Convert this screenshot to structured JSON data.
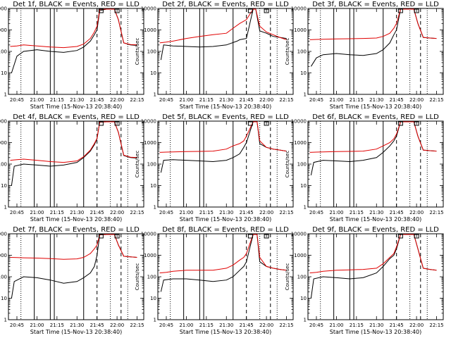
{
  "figure": {
    "xlabel": "Start Time (15-Nov-13 20:38:40)",
    "ylabel": "Counts/sec"
  },
  "chart_data": [
    {
      "type": "line",
      "title": "Det 1f, BLACK = Events, RED = LLD",
      "xlim": [
        "20:38:40",
        "22:20"
      ],
      "ylim": [
        1,
        10000
      ],
      "yscale": "log",
      "xticks": [
        "20:45",
        "21:00",
        "21:15",
        "21:30",
        "21:45",
        "22:00",
        "22:15"
      ],
      "yticks": [
        "1",
        "10",
        "100",
        "1000",
        "10000"
      ],
      "series": [
        {
          "name": "BLACK = Events",
          "x": [
            "20:41",
            "20:45",
            "20:50",
            "21:00",
            "21:10",
            "21:20",
            "21:30",
            "21:35",
            "21:40",
            "21:43",
            "21:45",
            "21:47",
            "21:52",
            "21:55",
            "21:58",
            "22:01",
            "22:05",
            "22:10",
            "22:15"
          ],
          "y": [
            10,
            60,
            100,
            120,
            100,
            90,
            110,
            160,
            300,
            600,
            1000,
            8000,
            11000,
            11000,
            11000,
            3000,
            250,
            200,
            190
          ]
        },
        {
          "name": "RED = LLD",
          "x": [
            "20:40",
            "20:45",
            "20:50",
            "21:00",
            "21:10",
            "21:20",
            "21:30",
            "21:35",
            "21:40",
            "21:43",
            "21:45",
            "21:47",
            "21:52",
            "21:55",
            "21:58",
            "22:01",
            "22:05",
            "22:10",
            "22:15"
          ],
          "y": [
            170,
            180,
            200,
            180,
            160,
            150,
            170,
            220,
            400,
            800,
            1500,
            9000,
            11000,
            11000,
            11000,
            3000,
            250,
            210,
            200
          ]
        }
      ]
    },
    {
      "type": "line",
      "title": "Det 2f, BLACK = Events, RED = LLD",
      "xlim": [
        "20:38:40",
        "22:20"
      ],
      "ylim": [
        1,
        10000
      ],
      "yscale": "log",
      "xticks": [
        "20:45",
        "21:00",
        "21:15",
        "21:30",
        "21:45",
        "22:00",
        "22:15"
      ],
      "yticks": [
        "1",
        "10",
        "100",
        "1000",
        "10000"
      ],
      "series": [
        {
          "name": "BLACK = Events",
          "x": [
            "20:41",
            "20:43",
            "20:50",
            "21:00",
            "21:10",
            "21:20",
            "21:30",
            "21:38",
            "21:40",
            "21:45",
            "21:50",
            "21:52",
            "21:55",
            "22:00",
            "22:05",
            "22:10",
            "22:15"
          ],
          "y": [
            40,
            200,
            180,
            170,
            160,
            170,
            200,
            300,
            350,
            400,
            11000,
            11000,
            900,
            700,
            500,
            450,
            400
          ]
        },
        {
          "name": "RED = LLD",
          "x": [
            "20:40",
            "20:45",
            "20:50",
            "21:00",
            "21:10",
            "21:20",
            "21:30",
            "21:35",
            "21:40",
            "21:45",
            "21:50",
            "21:52",
            "21:55",
            "22:00",
            "22:05",
            "22:10",
            "22:15"
          ],
          "y": [
            250,
            270,
            300,
            400,
            500,
            600,
            700,
            1200,
            2000,
            3000,
            11000,
            11000,
            1500,
            800,
            600,
            450,
            350
          ]
        }
      ]
    },
    {
      "type": "line",
      "title": "Det 3f, BLACK = Events, RED = LLD",
      "xlim": [
        "20:38:40",
        "22:20"
      ],
      "ylim": [
        1,
        10000
      ],
      "yscale": "log",
      "xticks": [
        "20:45",
        "21:00",
        "21:15",
        "21:30",
        "21:45",
        "22:00",
        "22:15"
      ],
      "yticks": [
        "1",
        "10",
        "100",
        "1000",
        "10000"
      ],
      "series": [
        {
          "name": "BLACK = Events",
          "x": [
            "20:41",
            "20:45",
            "20:50",
            "21:00",
            "21:10",
            "21:20",
            "21:30",
            "21:35",
            "21:40",
            "21:43",
            "21:45",
            "21:48",
            "21:55",
            "21:58",
            "22:01",
            "22:05",
            "22:10",
            "22:15"
          ],
          "y": [
            20,
            50,
            70,
            80,
            70,
            65,
            80,
            120,
            250,
            600,
            1000,
            11000,
            11000,
            11000,
            2000,
            450,
            420,
            400
          ]
        },
        {
          "name": "RED = LLD",
          "x": [
            "20:40",
            "20:45",
            "20:50",
            "21:00",
            "21:10",
            "21:20",
            "21:30",
            "21:35",
            "21:40",
            "21:43",
            "21:45",
            "21:48",
            "21:55",
            "21:58",
            "22:01",
            "22:05",
            "22:10",
            "22:15"
          ],
          "y": [
            350,
            360,
            370,
            380,
            390,
            400,
            420,
            500,
            700,
            1200,
            2000,
            11000,
            11000,
            11000,
            2000,
            450,
            420,
            400
          ]
        }
      ]
    },
    {
      "type": "line",
      "title": "Det 4f, BLACK = Events, RED = LLD",
      "xlim": [
        "20:38:40",
        "22:20"
      ],
      "ylim": [
        1,
        10000
      ],
      "yscale": "log",
      "xticks": [
        "20:45",
        "21:00",
        "21:15",
        "21:30",
        "21:45",
        "22:00",
        "22:15"
      ],
      "yticks": [
        "1",
        "10",
        "100",
        "1000",
        "10000"
      ],
      "series": [
        {
          "name": "BLACK = Events",
          "x": [
            "20:41",
            "20:43",
            "20:50",
            "21:00",
            "21:10",
            "21:20",
            "21:30",
            "21:35",
            "21:40",
            "21:43",
            "21:45",
            "21:47",
            "21:52",
            "21:55",
            "21:58",
            "22:01",
            "22:05",
            "22:10",
            "22:15"
          ],
          "y": [
            10,
            80,
            100,
            90,
            80,
            90,
            120,
            200,
            400,
            800,
            1500,
            9000,
            11000,
            11000,
            11000,
            3000,
            250,
            200,
            190
          ]
        },
        {
          "name": "RED = LLD",
          "x": [
            "20:40",
            "20:45",
            "20:50",
            "21:00",
            "21:10",
            "21:20",
            "21:30",
            "21:35",
            "21:40",
            "21:43",
            "21:45",
            "21:47",
            "21:52",
            "21:55",
            "21:58",
            "22:01",
            "22:05",
            "22:10",
            "22:15"
          ],
          "y": [
            150,
            160,
            170,
            150,
            130,
            120,
            140,
            220,
            450,
            900,
            1600,
            9000,
            11000,
            11000,
            11000,
            3000,
            260,
            210,
            200
          ]
        }
      ]
    },
    {
      "type": "line",
      "title": "Det 5f, BLACK = Events, RED = LLD",
      "xlim": [
        "20:38:40",
        "22:20"
      ],
      "ylim": [
        1,
        10000
      ],
      "yscale": "log",
      "xticks": [
        "20:45",
        "21:00",
        "21:15",
        "21:30",
        "21:45",
        "22:00",
        "22:15"
      ],
      "yticks": [
        "1",
        "10",
        "100",
        "1000",
        "10000"
      ],
      "series": [
        {
          "name": "BLACK = Events",
          "x": [
            "20:41",
            "20:43",
            "20:50",
            "21:00",
            "21:10",
            "21:20",
            "21:30",
            "21:35",
            "21:40",
            "21:43",
            "21:45",
            "21:50",
            "21:53",
            "21:55",
            "22:00",
            "22:05",
            "22:10",
            "22:15"
          ],
          "y": [
            40,
            150,
            160,
            150,
            140,
            130,
            150,
            200,
            300,
            600,
            1000,
            11000,
            11000,
            900,
            600,
            500,
            450,
            400
          ]
        },
        {
          "name": "RED = LLD",
          "x": [
            "20:40",
            "20:45",
            "20:50",
            "21:00",
            "21:10",
            "21:20",
            "21:30",
            "21:35",
            "21:40",
            "21:43",
            "21:45",
            "21:50",
            "21:53",
            "21:55",
            "22:00",
            "22:05",
            "22:10",
            "22:15"
          ],
          "y": [
            350,
            360,
            370,
            380,
            390,
            400,
            500,
            700,
            900,
            1200,
            2000,
            11000,
            11000,
            1200,
            600,
            500,
            450,
            400
          ]
        }
      ]
    },
    {
      "type": "line",
      "title": "Det 6f, BLACK = Events, RED = LLD",
      "xlim": [
        "20:38:40",
        "22:20"
      ],
      "ylim": [
        1,
        10000
      ],
      "yscale": "log",
      "xticks": [
        "20:45",
        "21:00",
        "21:15",
        "21:30",
        "21:45",
        "22:00",
        "22:15"
      ],
      "yticks": [
        "1",
        "10",
        "100",
        "1000",
        "10000"
      ],
      "series": [
        {
          "name": "BLACK = Events",
          "x": [
            "20:41",
            "20:43",
            "20:50",
            "21:00",
            "21:10",
            "21:20",
            "21:30",
            "21:35",
            "21:40",
            "21:43",
            "21:45",
            "21:48",
            "21:55",
            "21:58",
            "22:01",
            "22:05",
            "22:10",
            "22:15"
          ],
          "y": [
            30,
            120,
            150,
            140,
            130,
            150,
            200,
            350,
            700,
            1200,
            2000,
            11000,
            11000,
            11000,
            2000,
            450,
            420,
            400
          ]
        },
        {
          "name": "RED = LLD",
          "x": [
            "20:40",
            "20:45",
            "20:50",
            "21:00",
            "21:10",
            "21:20",
            "21:30",
            "21:35",
            "21:40",
            "21:43",
            "21:45",
            "21:48",
            "21:55",
            "21:58",
            "22:01",
            "22:05",
            "22:10",
            "22:15"
          ],
          "y": [
            350,
            360,
            370,
            380,
            390,
            400,
            500,
            700,
            1000,
            1500,
            2500,
            11000,
            11000,
            11000,
            2000,
            450,
            420,
            400
          ]
        }
      ]
    },
    {
      "type": "line",
      "title": "Det 7f, BLACK = Events, RED = LLD",
      "xlim": [
        "20:38:40",
        "22:20"
      ],
      "ylim": [
        1,
        10000
      ],
      "yscale": "log",
      "xticks": [
        "20:45",
        "21:00",
        "21:15",
        "21:30",
        "21:45",
        "22:00",
        "22:15"
      ],
      "yticks": [
        "1",
        "10",
        "100",
        "1000",
        "10000"
      ],
      "series": [
        {
          "name": "BLACK = Events",
          "x": [
            "20:41",
            "20:43",
            "20:50",
            "21:00",
            "21:10",
            "21:20",
            "21:30",
            "21:35",
            "21:40",
            "21:43",
            "21:45",
            "21:47",
            "21:52",
            "21:55",
            "21:58",
            "22:01",
            "22:05",
            "22:10",
            "22:15"
          ],
          "y": [
            10,
            60,
            100,
            90,
            70,
            50,
            60,
            90,
            150,
            300,
            1000,
            9000,
            11000,
            11000,
            11000,
            3000,
            900,
            850,
            800
          ]
        },
        {
          "name": "RED = LLD",
          "x": [
            "20:40",
            "20:45",
            "20:50",
            "21:00",
            "21:10",
            "21:20",
            "21:30",
            "21:35",
            "21:40",
            "21:43",
            "21:45",
            "21:47",
            "21:52",
            "21:55",
            "21:58",
            "22:01",
            "22:05",
            "22:10",
            "22:15"
          ],
          "y": [
            800,
            780,
            760,
            740,
            700,
            650,
            680,
            800,
            1200,
            2000,
            3000,
            9000,
            11000,
            11000,
            11000,
            3000,
            900,
            850,
            800
          ]
        }
      ]
    },
    {
      "type": "line",
      "title": "Det 8f, BLACK = Events, RED = LLD",
      "xlim": [
        "20:38:40",
        "22:20"
      ],
      "ylim": [
        1,
        10000
      ],
      "yscale": "log",
      "xticks": [
        "20:45",
        "21:00",
        "21:15",
        "21:30",
        "21:45",
        "22:00",
        "22:15"
      ],
      "yticks": [
        "1",
        "10",
        "100",
        "1000",
        "10000"
      ],
      "series": [
        {
          "name": "BLACK = Events",
          "x": [
            "20:41",
            "20:43",
            "20:50",
            "21:00",
            "21:10",
            "21:20",
            "21:30",
            "21:35",
            "21:40",
            "21:43",
            "21:45",
            "21:50",
            "21:53",
            "21:55",
            "22:00",
            "22:05",
            "22:10",
            "22:15"
          ],
          "y": [
            20,
            70,
            80,
            80,
            70,
            60,
            70,
            100,
            200,
            300,
            500,
            11000,
            11000,
            500,
            300,
            250,
            220,
            200
          ]
        },
        {
          "name": "RED = LLD",
          "x": [
            "20:40",
            "20:45",
            "20:50",
            "21:00",
            "21:10",
            "21:20",
            "21:30",
            "21:35",
            "21:40",
            "21:43",
            "21:45",
            "21:50",
            "21:53",
            "21:55",
            "22:00",
            "22:05",
            "22:10",
            "22:15"
          ],
          "y": [
            150,
            160,
            180,
            200,
            200,
            200,
            250,
            350,
            600,
            800,
            1200,
            11000,
            11000,
            800,
            300,
            250,
            220,
            200
          ]
        }
      ]
    },
    {
      "type": "line",
      "title": "Det 9f, BLACK = Events, RED = LLD",
      "xlim": [
        "20:38:40",
        "22:20"
      ],
      "ylim": [
        1,
        10000
      ],
      "yscale": "log",
      "xticks": [
        "20:45",
        "21:00",
        "21:15",
        "21:30",
        "21:45",
        "22:00",
        "22:15"
      ],
      "yticks": [
        "1",
        "10",
        "100",
        "1000",
        "10000"
      ],
      "series": [
        {
          "name": "BLACK = Events",
          "x": [
            "20:41",
            "20:43",
            "20:50",
            "21:00",
            "21:10",
            "21:20",
            "21:30",
            "21:35",
            "21:40",
            "21:43",
            "21:45",
            "21:48",
            "21:55",
            "21:58",
            "22:01",
            "22:05",
            "22:10",
            "22:15"
          ],
          "y": [
            10,
            80,
            100,
            90,
            80,
            90,
            150,
            300,
            700,
            1000,
            2000,
            11000,
            11000,
            11000,
            2000,
            250,
            220,
            200
          ]
        },
        {
          "name": "RED = LLD",
          "x": [
            "20:40",
            "20:45",
            "20:50",
            "21:00",
            "21:10",
            "21:20",
            "21:30",
            "21:35",
            "21:40",
            "21:43",
            "21:45",
            "21:48",
            "21:55",
            "21:58",
            "22:01",
            "22:05",
            "22:10",
            "22:15"
          ],
          "y": [
            150,
            160,
            180,
            200,
            210,
            220,
            250,
            400,
            800,
            1200,
            2500,
            11000,
            11000,
            11000,
            2000,
            250,
            220,
            200
          ]
        }
      ]
    }
  ],
  "markers": {
    "solid_times": [
      "20:58",
      "21:10",
      "21:13",
      "21:35"
    ],
    "dashed_times": [
      "21:45",
      "22:03"
    ],
    "dotted_times": [
      "20:48",
      "21:55",
      "22:08"
    ]
  }
}
